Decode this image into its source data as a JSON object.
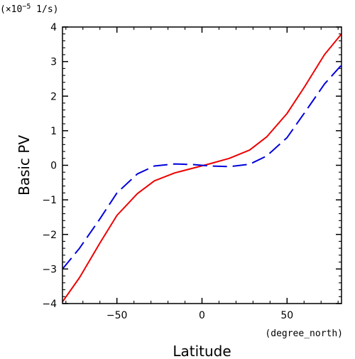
{
  "chart_data": {
    "type": "line",
    "title": "",
    "xlabel": "Latitude",
    "ylabel": "Basic PV",
    "x_unit": "(degree_north)",
    "y_unit_prefix": "(×10",
    "y_unit_exponent": "−5",
    "y_unit_suffix": " 1/s)",
    "xlim": [
      -82,
      82
    ],
    "ylim": [
      -4,
      4
    ],
    "x_ticks": [
      -50,
      0,
      50
    ],
    "x_tick_labels": [
      "−50",
      "0",
      "50"
    ],
    "y_ticks": [
      -4,
      -3,
      -2,
      -1,
      0,
      1,
      2,
      3,
      4
    ],
    "y_tick_labels": [
      "−4",
      "−3",
      "−2",
      "−1",
      "0",
      "1",
      "2",
      "3",
      "4"
    ],
    "grid": false,
    "series": [
      {
        "color": "#ee0000",
        "dash": "solid",
        "x": [
          -82,
          -72,
          -60,
          -50,
          -38,
          -28,
          -16,
          -5,
          5,
          16,
          28,
          38,
          50,
          60,
          72,
          82
        ],
        "y": [
          -3.95,
          -3.25,
          -2.25,
          -1.45,
          -0.82,
          -0.45,
          -0.22,
          -0.08,
          0.05,
          0.2,
          0.44,
          0.82,
          1.5,
          2.25,
          3.2,
          3.8
        ]
      },
      {
        "color": "#0000dd",
        "dash": "dashed",
        "x": [
          -82,
          -72,
          -60,
          -50,
          -38,
          -28,
          -16,
          -5,
          5,
          16,
          28,
          38,
          50,
          60,
          72,
          82
        ],
        "y": [
          -3.0,
          -2.4,
          -1.55,
          -0.8,
          -0.25,
          -0.02,
          0.04,
          0.02,
          -0.02,
          -0.04,
          0.03,
          0.27,
          0.8,
          1.5,
          2.35,
          2.9
        ]
      }
    ]
  }
}
